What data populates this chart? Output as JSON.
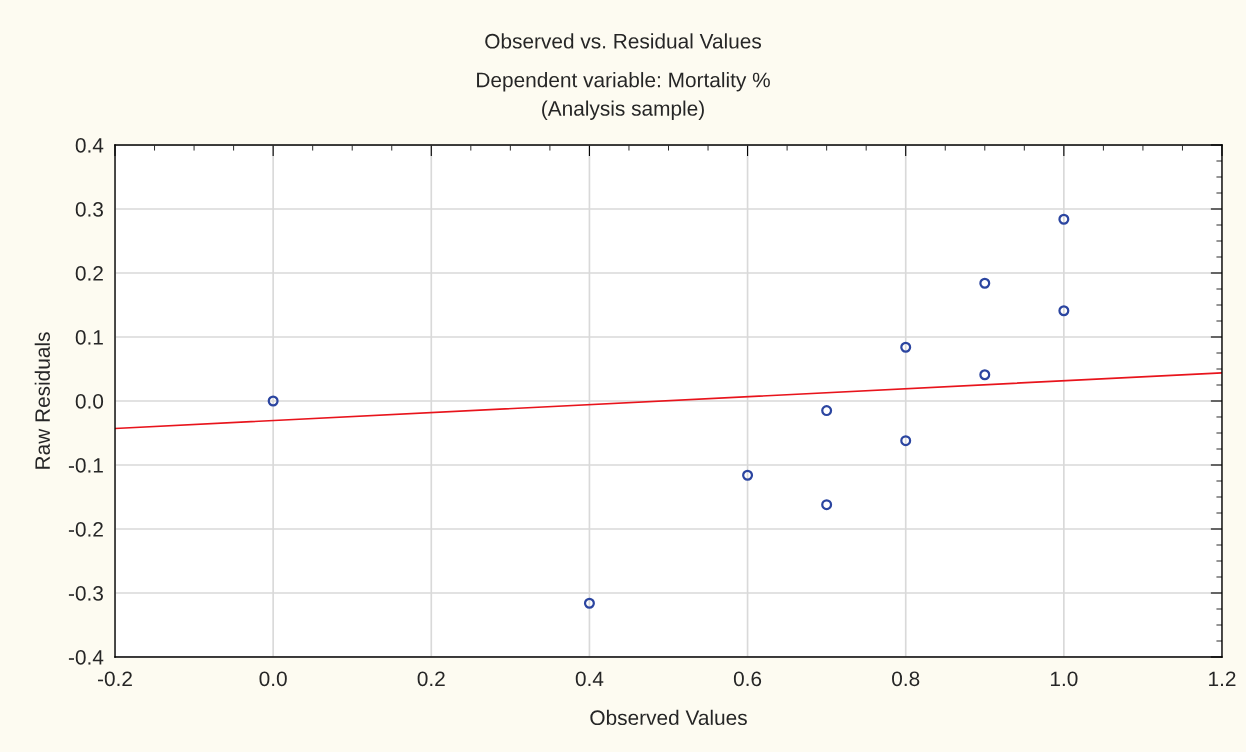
{
  "chart_data": {
    "type": "scatter",
    "title": "Observed vs. Residual Values",
    "subtitle": "Dependent variable: Mortality %\n(Analysis sample)",
    "xlabel": "Observed Values",
    "ylabel": "Raw Residuals",
    "series": [
      {
        "color": "#2b45a0",
        "marker": "circle",
        "x": [
          0.0,
          0.4,
          0.6,
          0.7,
          0.7,
          0.8,
          0.8,
          0.9,
          0.9,
          1.0,
          1.0
        ],
        "values": [
          0.0,
          -0.316,
          -0.116,
          -0.015,
          -0.162,
          0.084,
          -0.062,
          0.184,
          0.041,
          0.284,
          0.141
        ]
      },
      {
        "type": "line",
        "color": "#e8141c",
        "marker": "none",
        "line_style": "solid",
        "x": [
          -0.2,
          1.2
        ],
        "values": [
          -0.043,
          0.044
        ]
      }
    ],
    "xlim": [
      -0.2,
      1.2
    ],
    "ylim": [
      -0.4,
      0.4
    ],
    "xticks": [
      {
        "value": -0.2,
        "label": "-0.2"
      },
      {
        "value": 0.0,
        "label": "0.0"
      },
      {
        "value": 0.2,
        "label": "0.2"
      },
      {
        "value": 0.4,
        "label": "0.4"
      },
      {
        "value": 0.6,
        "label": "0.6"
      },
      {
        "value": 0.8,
        "label": "0.8"
      },
      {
        "value": 1.0,
        "label": "1.0"
      },
      {
        "value": 1.2,
        "label": "1.2"
      }
    ],
    "yticks": [
      {
        "value": -0.4,
        "label": "-0.4"
      },
      {
        "value": -0.3,
        "label": "-0.3"
      },
      {
        "value": -0.2,
        "label": "-0.2"
      },
      {
        "value": -0.1,
        "label": "-0.1"
      },
      {
        "value": 0.0,
        "label": "0.0"
      },
      {
        "value": 0.1,
        "label": "0.1"
      },
      {
        "value": 0.2,
        "label": "0.2"
      },
      {
        "value": 0.3,
        "label": "0.3"
      },
      {
        "value": 0.4,
        "label": "0.4"
      }
    ],
    "grid": true,
    "legend": false
  }
}
